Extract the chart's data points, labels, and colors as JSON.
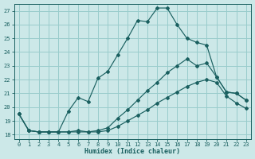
{
  "xlabel": "Humidex (Indice chaleur)",
  "bg_color": "#cce8e8",
  "grid_color": "#99cccc",
  "line_color": "#1a6060",
  "xlim": [
    -0.5,
    23.5
  ],
  "ylim": [
    17.7,
    27.5
  ],
  "yticks": [
    18,
    19,
    20,
    21,
    22,
    23,
    24,
    25,
    26,
    27
  ],
  "xticks": [
    0,
    1,
    2,
    3,
    4,
    5,
    6,
    7,
    8,
    9,
    10,
    11,
    12,
    13,
    14,
    15,
    16,
    17,
    18,
    19,
    20,
    21,
    22,
    23
  ],
  "series1_x": [
    0,
    1,
    2,
    3,
    4,
    5,
    6,
    7,
    8,
    9,
    10,
    11,
    12,
    13,
    14,
    15,
    16,
    17,
    18,
    19,
    20,
    21,
    22,
    23
  ],
  "series1_y": [
    19.5,
    18.3,
    18.2,
    18.2,
    18.2,
    19.7,
    20.7,
    20.4,
    22.1,
    22.6,
    23.8,
    25.0,
    26.3,
    26.2,
    27.2,
    27.2,
    26.0,
    25.0,
    24.7,
    24.5,
    22.2,
    21.1,
    21.0,
    20.5
  ],
  "series2_x": [
    0,
    1,
    2,
    3,
    4,
    5,
    6,
    7,
    8,
    9,
    10,
    11,
    12,
    13,
    14,
    15,
    16,
    17,
    18,
    19,
    20,
    21,
    22,
    23
  ],
  "series2_y": [
    19.5,
    18.3,
    18.2,
    18.2,
    18.2,
    18.2,
    18.3,
    18.2,
    18.3,
    18.5,
    19.2,
    19.8,
    20.5,
    21.2,
    21.8,
    22.5,
    23.0,
    23.5,
    23.0,
    23.2,
    22.2,
    21.1,
    21.0,
    20.5
  ],
  "series3_x": [
    0,
    1,
    2,
    3,
    4,
    5,
    6,
    7,
    8,
    9,
    10,
    11,
    12,
    13,
    14,
    15,
    16,
    17,
    18,
    19,
    20,
    21,
    22,
    23
  ],
  "series3_y": [
    19.5,
    18.3,
    18.2,
    18.2,
    18.2,
    18.2,
    18.2,
    18.2,
    18.2,
    18.3,
    18.6,
    19.0,
    19.4,
    19.8,
    20.3,
    20.7,
    21.1,
    21.5,
    21.8,
    22.0,
    21.8,
    20.8,
    20.3,
    19.9
  ]
}
